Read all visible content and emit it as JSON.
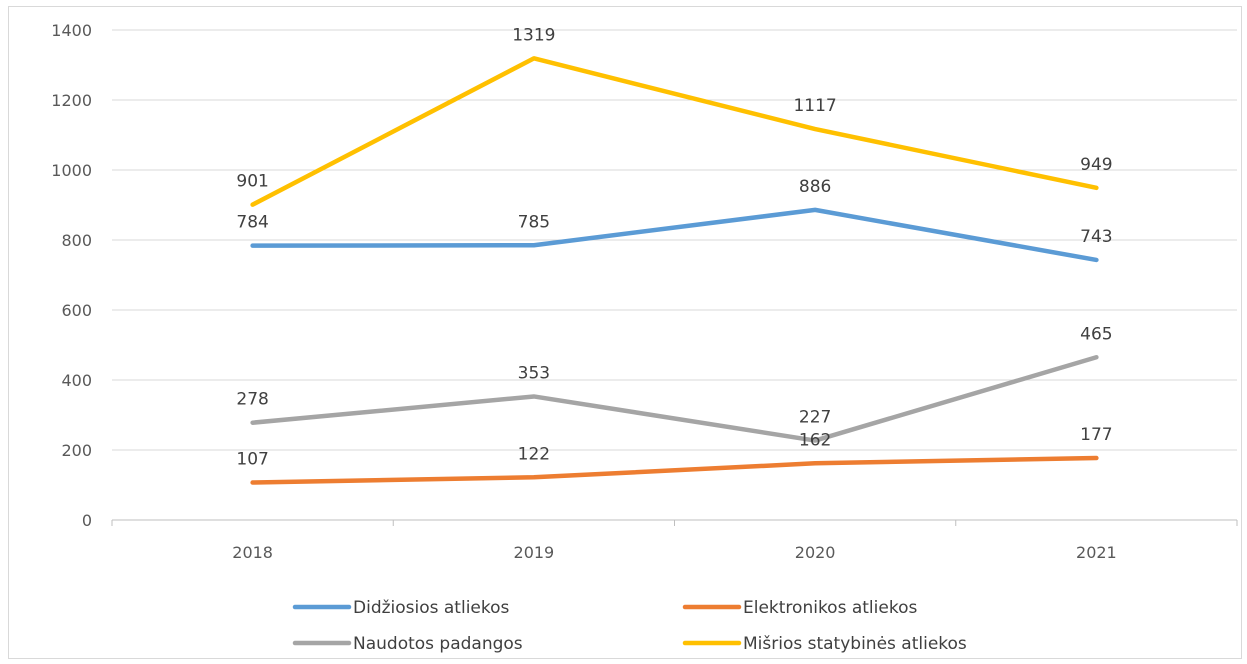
{
  "chart_data": {
    "type": "line",
    "categories": [
      "2018",
      "2019",
      "2020",
      "2021"
    ],
    "ylim": [
      0,
      1400
    ],
    "yticks": [
      0,
      200,
      400,
      600,
      800,
      1000,
      1200,
      1400
    ],
    "grid": true,
    "legend_position": "bottom",
    "series": [
      {
        "name": "Didžiosios atliekos",
        "color": "#5B9BD5",
        "values": [
          784,
          785,
          886,
          743
        ]
      },
      {
        "name": "Elektronikos atliekos",
        "color": "#ED7D31",
        "values": [
          107,
          122,
          162,
          177
        ]
      },
      {
        "name": "Naudotos padangos",
        "color": "#A5A5A5",
        "values": [
          278,
          353,
          227,
          465
        ]
      },
      {
        "name": "Mišrios statybinės atliekos",
        "color": "#FFC000",
        "values": [
          901,
          1319,
          1117,
          949
        ]
      }
    ]
  }
}
